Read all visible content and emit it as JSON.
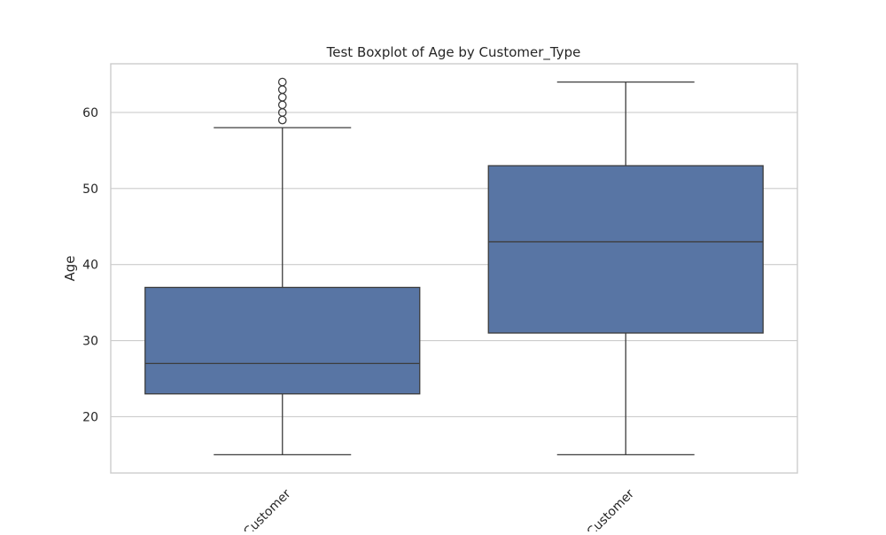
{
  "chart_data": {
    "type": "box",
    "title": "Test Boxplot of Age by Customer_Type",
    "xlabel": "",
    "ylabel": "Age",
    "ylim": [
      12.6,
      66.4
    ],
    "yticks": [
      20,
      30,
      40,
      50,
      60
    ],
    "grid": true,
    "categories": [
      "Customer",
      "Customer"
    ],
    "category_label_rotation": -45,
    "boxes": [
      {
        "category": "Customer",
        "whisker_low": 15,
        "q1": 23,
        "median": 27,
        "q3": 37,
        "whisker_high": 58,
        "outliers": [
          59,
          60,
          61,
          62,
          63,
          64
        ]
      },
      {
        "category": "Customer",
        "whisker_low": 15,
        "q1": 31,
        "median": 43,
        "q3": 53,
        "whisker_high": 64,
        "outliers": []
      }
    ],
    "colors": {
      "box_fill": "#5875a4",
      "line": "#3d3d3d",
      "grid": "#cccccc",
      "frame": "#cccccc",
      "text": "#262626"
    }
  }
}
